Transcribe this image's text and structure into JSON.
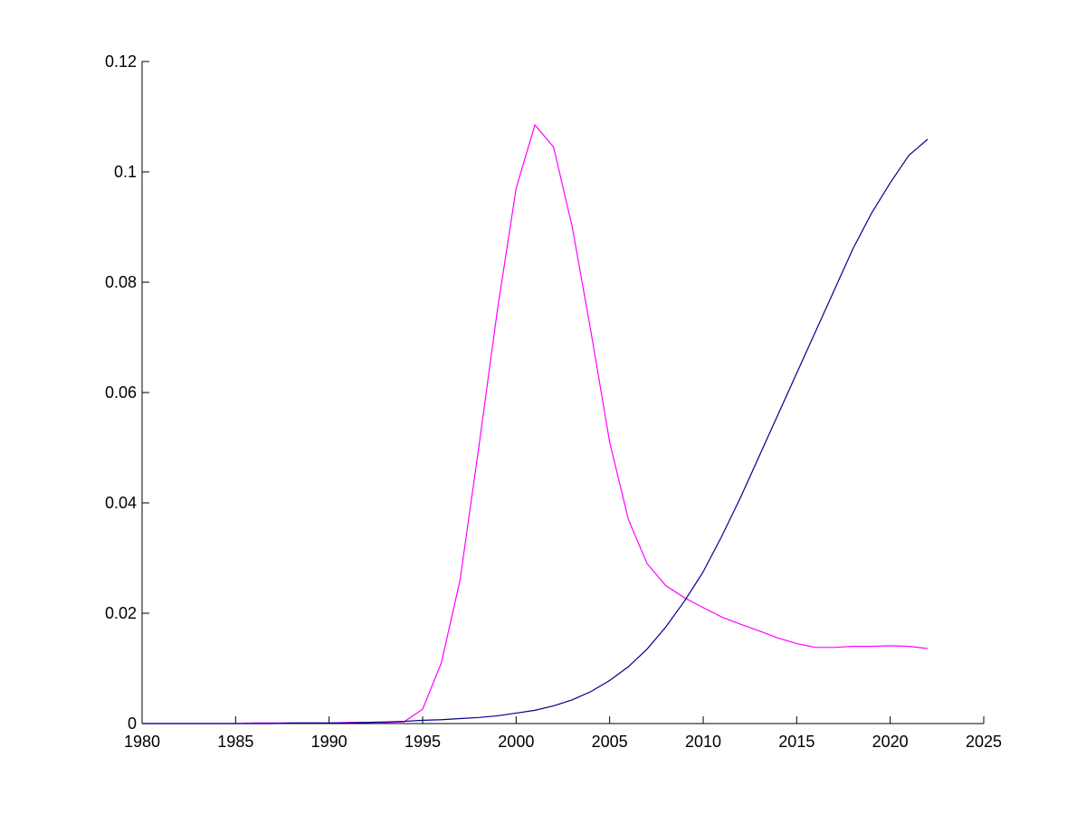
{
  "chart_data": {
    "type": "line",
    "x": [
      1980,
      1981,
      1982,
      1983,
      1984,
      1985,
      1986,
      1987,
      1988,
      1989,
      1990,
      1991,
      1992,
      1993,
      1994,
      1995,
      1996,
      1997,
      1998,
      1999,
      2000,
      2001,
      2002,
      2003,
      2004,
      2005,
      2006,
      2007,
      2008,
      2009,
      2010,
      2011,
      2012,
      2013,
      2014,
      2015,
      2016,
      2017,
      2018,
      2019,
      2020,
      2021,
      2022
    ],
    "series": [
      {
        "color": "#ff00ff",
        "values": [
          0,
          0,
          0,
          0,
          0,
          0,
          0.0001,
          0.0001,
          0.0001,
          0.0001,
          0.0001,
          0.0002,
          0.0002,
          0.0002,
          0.0003,
          0.0026,
          0.011,
          0.026,
          0.05,
          0.075,
          0.097,
          0.1085,
          0.1045,
          0.09,
          0.071,
          0.051,
          0.037,
          0.029,
          0.025,
          0.0228,
          0.021,
          0.0193,
          0.018,
          0.0168,
          0.0155,
          0.0145,
          0.0138,
          0.0138,
          0.014,
          0.014,
          0.0141,
          0.014,
          0.0136
        ]
      },
      {
        "color": "#00008b",
        "values": [
          0,
          0,
          0,
          0,
          0,
          0,
          0,
          0,
          0.0001,
          0.0001,
          0.0001,
          0.0001,
          0.0002,
          0.0003,
          0.0004,
          0.0006,
          0.0007,
          0.0009,
          0.0011,
          0.0014,
          0.0019,
          0.0024,
          0.0032,
          0.0043,
          0.0058,
          0.0078,
          0.0103,
          0.0135,
          0.0175,
          0.0222,
          0.0275,
          0.034,
          0.041,
          0.0485,
          0.056,
          0.0635,
          0.071,
          0.0785,
          0.086,
          0.0925,
          0.098,
          0.103,
          0.1059
        ]
      }
    ],
    "xlim": [
      1980,
      2025
    ],
    "xticks": [
      1980,
      1985,
      1990,
      1995,
      2000,
      2005,
      2010,
      2015,
      2020,
      2025
    ],
    "ylim": [
      0,
      0.12
    ],
    "yticks": [
      0,
      0.02,
      0.04,
      0.06,
      0.08,
      0.1,
      0.12
    ]
  }
}
